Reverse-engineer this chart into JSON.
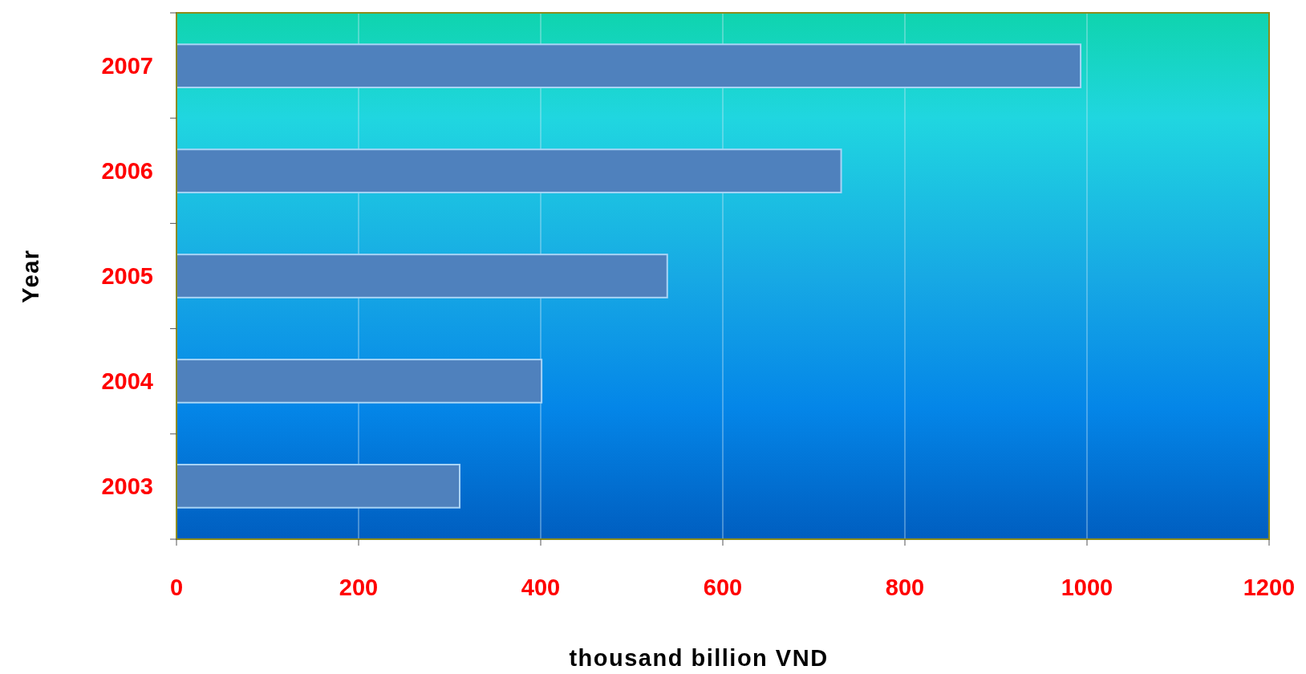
{
  "chart_data": {
    "type": "bar",
    "orientation": "horizontal",
    "categories": [
      "2007",
      "2006",
      "2005",
      "2004",
      "2003"
    ],
    "values": [
      993,
      730,
      539,
      401,
      311
    ],
    "color": "#4f81bd",
    "xlim": [
      0,
      1200
    ],
    "xticks": [
      0,
      200,
      400,
      600,
      800,
      1000,
      1200
    ],
    "xlabel": "thousand billion VND",
    "ylabel": "Year",
    "grid": "x"
  }
}
